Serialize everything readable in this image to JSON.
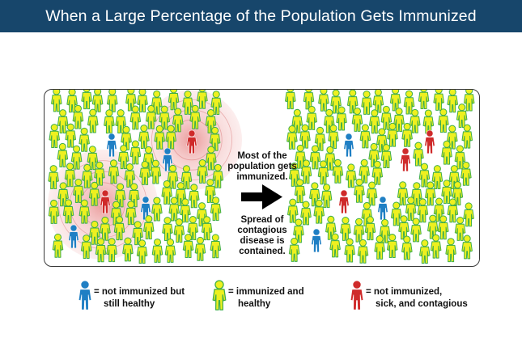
{
  "title": "When a Large Percentage of the Population Gets Immunized",
  "diagram": {
    "message_top": [
      "Most of the",
      "population gets",
      "immunized."
    ],
    "message_bottom": [
      "Spread of",
      "contagious",
      "disease is",
      "contained."
    ]
  },
  "legend": [
    {
      "kind": "blue",
      "line1": "= not immunized but",
      "line2": "still healthy"
    },
    {
      "kind": "yellow",
      "line1": "= immunized and",
      "line2": "healthy"
    },
    {
      "kind": "red",
      "line1": "= not immunized,",
      "line2": "sick, and contagious"
    }
  ],
  "colors": {
    "blue": "#1f7fc4",
    "yellow": "#eef01f",
    "yellow_outline": "#3fae49",
    "red": "#cf2a2a",
    "banner": "#17466b"
  }
}
